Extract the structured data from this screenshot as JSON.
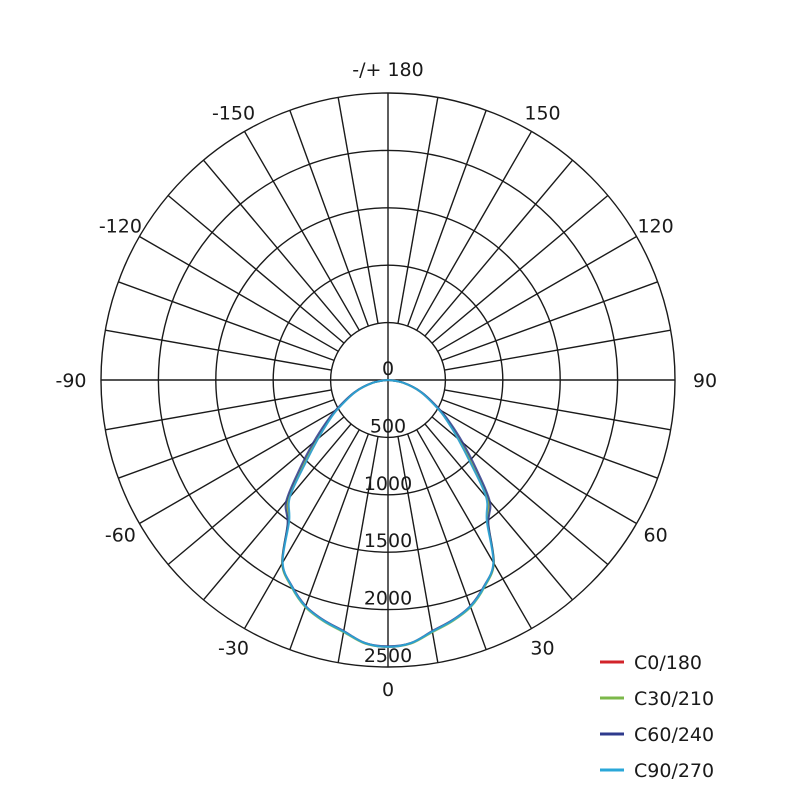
{
  "chart_data": {
    "type": "polar-line",
    "title": "",
    "angle_labels": [
      {
        "angle": 180,
        "text": "-/+ 180"
      },
      {
        "angle": 150,
        "text": "150"
      },
      {
        "angle": 120,
        "text": "120"
      },
      {
        "angle": 90,
        "text": "90"
      },
      {
        "angle": 60,
        "text": "60"
      },
      {
        "angle": 30,
        "text": "30"
      },
      {
        "angle": 0,
        "text": "0"
      },
      {
        "angle": -30,
        "text": "-30"
      },
      {
        "angle": -60,
        "text": "-60"
      },
      {
        "angle": -90,
        "text": "-90"
      },
      {
        "angle": -120,
        "text": "-120"
      },
      {
        "angle": -150,
        "text": "-150"
      }
    ],
    "radial_labels": [
      "0",
      "500",
      "1000",
      "1500",
      "2000",
      "2500"
    ],
    "radial_ticks": [
      0,
      500,
      1000,
      1500,
      2000,
      2500
    ],
    "rlim": [
      0,
      2500
    ],
    "spoke_step_deg": 10,
    "grid": true,
    "legend_position": "bottom-right",
    "angles": [
      0,
      5,
      10,
      15,
      20,
      25,
      30,
      35,
      40,
      45,
      50,
      55,
      60,
      70,
      80,
      90
    ],
    "series": [
      {
        "name": "C0/180",
        "color": "#d2232a",
        "values": [
          2325,
          2300,
          2225,
          2170,
          2100,
          1985,
          1840,
          1510,
          1340,
          1020,
          800,
          640,
          510,
          300,
          130,
          0
        ]
      },
      {
        "name": "C30/210",
        "color": "#7cb84a",
        "values": [
          2325,
          2305,
          2230,
          2175,
          2105,
          1990,
          1845,
          1520,
          1360,
          1040,
          815,
          650,
          515,
          305,
          130,
          0
        ]
      },
      {
        "name": "C60/240",
        "color": "#2e3a8c",
        "values": [
          2320,
          2300,
          2220,
          2165,
          2095,
          1980,
          1840,
          1525,
          1380,
          1080,
          850,
          670,
          525,
          310,
          135,
          0
        ]
      },
      {
        "name": "C90/270",
        "color": "#2aa7d8",
        "values": [
          2325,
          2300,
          2225,
          2170,
          2100,
          1985,
          1835,
          1500,
          1330,
          1010,
          795,
          635,
          505,
          300,
          128,
          0
        ]
      }
    ]
  }
}
